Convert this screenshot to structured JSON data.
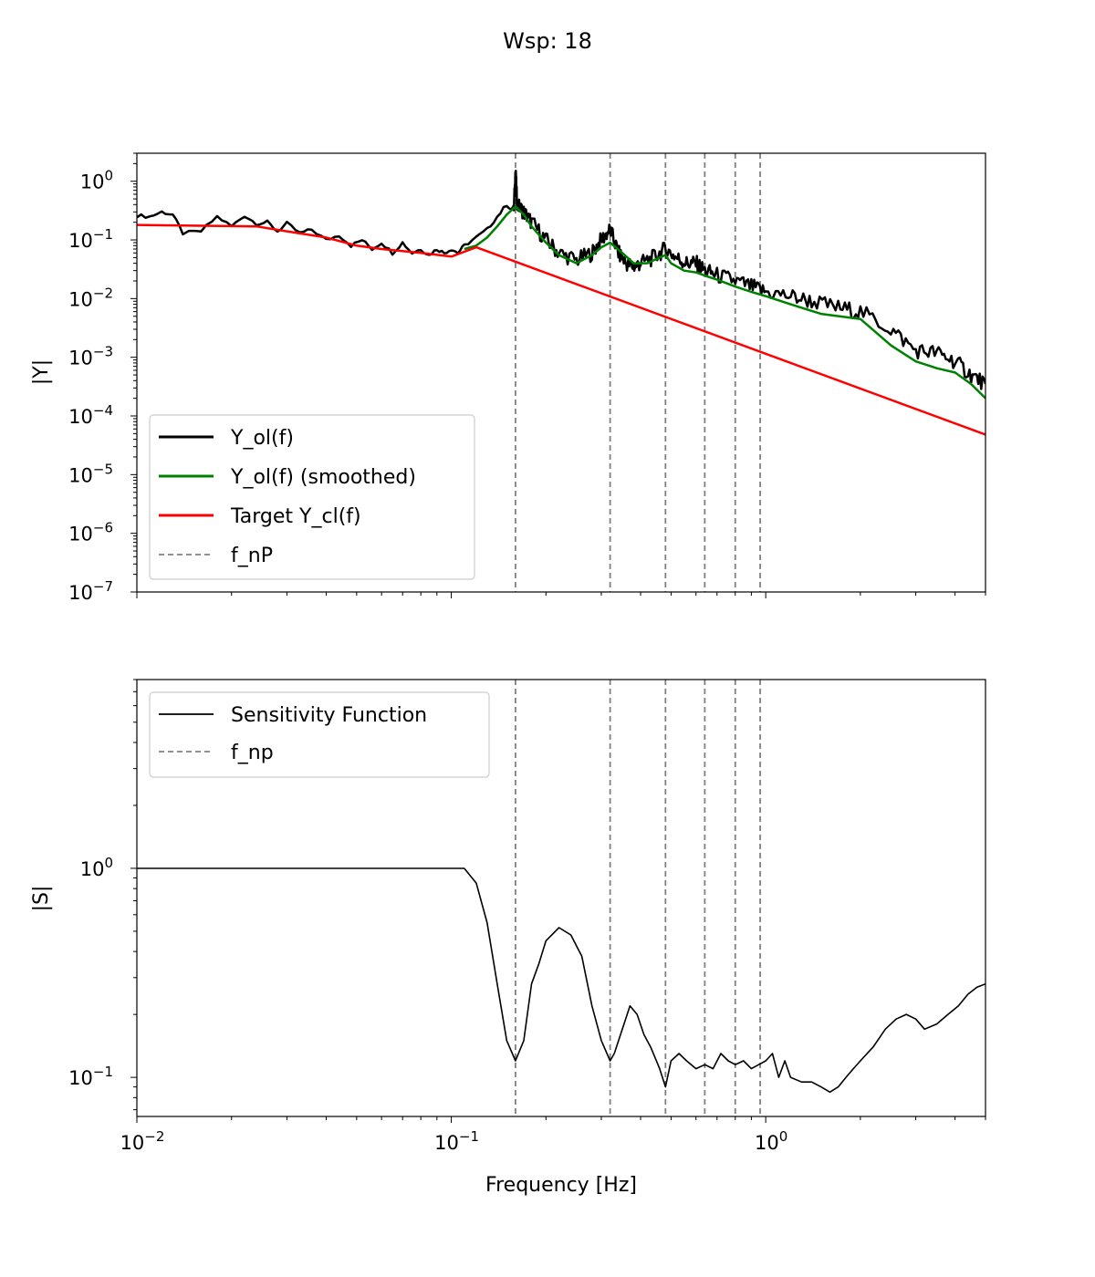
{
  "figure": {
    "title": "Wsp: 18"
  },
  "chart_data": [
    {
      "type": "line",
      "xscale": "log",
      "yscale": "log",
      "xlim": [
        0.01,
        5
      ],
      "ylim": [
        1e-07,
        3
      ],
      "ylabel": "|Y|",
      "xlabel": "",
      "x_tick_labels": [],
      "y_ticks": [
        {
          "value": 1,
          "base": "10",
          "exp": "0"
        },
        {
          "value": 0.1,
          "base": "10",
          "exp": "−1"
        },
        {
          "value": 0.01,
          "base": "10",
          "exp": "−2"
        },
        {
          "value": 0.001,
          "base": "10",
          "exp": "−3"
        },
        {
          "value": 0.0001,
          "base": "10",
          "exp": "−4"
        },
        {
          "value": 1e-05,
          "base": "10",
          "exp": "−5"
        },
        {
          "value": 1e-06,
          "base": "10",
          "exp": "−6"
        },
        {
          "value": 1e-07,
          "base": "10",
          "exp": "−7"
        }
      ],
      "legend_position": "lower-left",
      "vlines": {
        "name": "f_nP",
        "color": "#808080",
        "x": [
          0.16,
          0.32,
          0.48,
          0.64,
          0.8,
          0.96
        ]
      },
      "series": [
        {
          "name": "Y_ol(f)",
          "color": "#000000",
          "noisy": true,
          "x": [
            0.01,
            0.011,
            0.012,
            0.013,
            0.014,
            0.016,
            0.018,
            0.02,
            0.022,
            0.024,
            0.026,
            0.028,
            0.03,
            0.033,
            0.036,
            0.04,
            0.044,
            0.048,
            0.052,
            0.056,
            0.06,
            0.065,
            0.07,
            0.075,
            0.08,
            0.085,
            0.09,
            0.095,
            0.1,
            0.105,
            0.11,
            0.12,
            0.13,
            0.14,
            0.15,
            0.158,
            0.16,
            0.162,
            0.17,
            0.18,
            0.2,
            0.22,
            0.25,
            0.28,
            0.3,
            0.32,
            0.34,
            0.36,
            0.38,
            0.4,
            0.44,
            0.48,
            0.52,
            0.56,
            0.6,
            0.64,
            0.7,
            0.8,
            0.9,
            1.0,
            1.2,
            1.4,
            1.7,
            2.0,
            2.5,
            3.0,
            3.5,
            4.0,
            4.5,
            5.0
          ],
          "y": [
            0.26,
            0.25,
            0.3,
            0.27,
            0.13,
            0.14,
            0.25,
            0.17,
            0.26,
            0.19,
            0.2,
            0.14,
            0.19,
            0.13,
            0.15,
            0.1,
            0.12,
            0.08,
            0.1,
            0.07,
            0.09,
            0.06,
            0.09,
            0.06,
            0.07,
            0.055,
            0.07,
            0.06,
            0.07,
            0.06,
            0.08,
            0.11,
            0.15,
            0.25,
            0.4,
            0.3,
            1.5,
            0.4,
            0.3,
            0.2,
            0.1,
            0.06,
            0.045,
            0.06,
            0.1,
            0.15,
            0.06,
            0.04,
            0.035,
            0.04,
            0.05,
            0.07,
            0.05,
            0.04,
            0.04,
            0.03,
            0.025,
            0.02,
            0.016,
            0.013,
            0.011,
            0.009,
            0.007,
            0.006,
            0.003,
            0.0013,
            0.0012,
            0.00085,
            0.0005,
            0.00035
          ]
        },
        {
          "name": "Y_ol(f) (smoothed)",
          "color": "#008000",
          "x": [
            0.11,
            0.12,
            0.13,
            0.14,
            0.15,
            0.16,
            0.17,
            0.18,
            0.2,
            0.22,
            0.25,
            0.28,
            0.3,
            0.32,
            0.35,
            0.38,
            0.42,
            0.46,
            0.48,
            0.5,
            0.55,
            0.6,
            0.65,
            0.7,
            0.8,
            0.9,
            1.0,
            1.2,
            1.5,
            2.0,
            2.5,
            3.0,
            3.5,
            4.0,
            4.5,
            5.0
          ],
          "y": [
            0.07,
            0.08,
            0.11,
            0.17,
            0.27,
            0.37,
            0.27,
            0.17,
            0.09,
            0.055,
            0.04,
            0.055,
            0.075,
            0.09,
            0.06,
            0.04,
            0.04,
            0.05,
            0.055,
            0.04,
            0.03,
            0.028,
            0.024,
            0.021,
            0.016,
            0.013,
            0.011,
            0.008,
            0.0055,
            0.0045,
            0.0016,
            0.00085,
            0.00065,
            0.00055,
            0.00035,
            0.0002
          ]
        },
        {
          "name": "Target Y_cl(f)",
          "color": "#ff0000",
          "x": [
            0.01,
            0.015,
            0.024,
            0.03,
            0.04,
            0.05,
            0.06,
            0.08,
            0.1,
            0.12,
            5.0
          ],
          "y": [
            0.18,
            0.175,
            0.17,
            0.14,
            0.11,
            0.08,
            0.07,
            0.06,
            0.052,
            0.075,
            4.8e-05
          ]
        }
      ]
    },
    {
      "type": "line",
      "xscale": "log",
      "yscale": "log",
      "xlim": [
        0.01,
        5
      ],
      "ylim": [
        0.065,
        8
      ],
      "ylabel": "|S|",
      "xlabel": "Frequency [Hz]",
      "x_tick_labels": [
        {
          "value": 0.01,
          "base": "10",
          "exp": "−2"
        },
        {
          "value": 0.1,
          "base": "10",
          "exp": "−1"
        },
        {
          "value": 1,
          "base": "10",
          "exp": "0"
        }
      ],
      "y_ticks": [
        {
          "value": 1,
          "base": "10",
          "exp": "0"
        },
        {
          "value": 0.1,
          "base": "10",
          "exp": "−1"
        }
      ],
      "legend_position": "upper-left",
      "vlines": {
        "name": "f_np",
        "color": "#808080",
        "x": [
          0.16,
          0.32,
          0.48,
          0.64,
          0.8,
          0.96
        ]
      },
      "series": [
        {
          "name": "Sensitivity Function",
          "color": "#000000",
          "x": [
            0.01,
            0.11,
            0.12,
            0.13,
            0.14,
            0.15,
            0.16,
            0.17,
            0.18,
            0.19,
            0.2,
            0.22,
            0.24,
            0.26,
            0.28,
            0.3,
            0.32,
            0.33,
            0.35,
            0.37,
            0.39,
            0.41,
            0.43,
            0.46,
            0.48,
            0.5,
            0.53,
            0.56,
            0.6,
            0.64,
            0.68,
            0.72,
            0.76,
            0.8,
            0.85,
            0.9,
            0.95,
            1.0,
            1.05,
            1.1,
            1.15,
            1.2,
            1.3,
            1.4,
            1.5,
            1.6,
            1.7,
            1.8,
            1.9,
            2.0,
            2.2,
            2.4,
            2.6,
            2.8,
            3.0,
            3.2,
            3.5,
            3.8,
            4.1,
            4.4,
            4.7,
            5.0
          ],
          "y": [
            1.0,
            1.0,
            0.85,
            0.55,
            0.28,
            0.15,
            0.12,
            0.15,
            0.28,
            0.35,
            0.45,
            0.52,
            0.48,
            0.38,
            0.22,
            0.15,
            0.12,
            0.13,
            0.17,
            0.22,
            0.2,
            0.16,
            0.14,
            0.11,
            0.09,
            0.12,
            0.13,
            0.12,
            0.11,
            0.115,
            0.11,
            0.13,
            0.12,
            0.115,
            0.12,
            0.11,
            0.115,
            0.12,
            0.13,
            0.1,
            0.12,
            0.1,
            0.095,
            0.095,
            0.09,
            0.085,
            0.09,
            0.1,
            0.11,
            0.12,
            0.14,
            0.17,
            0.19,
            0.2,
            0.19,
            0.17,
            0.18,
            0.2,
            0.22,
            0.25,
            0.27,
            0.28
          ]
        }
      ]
    }
  ]
}
